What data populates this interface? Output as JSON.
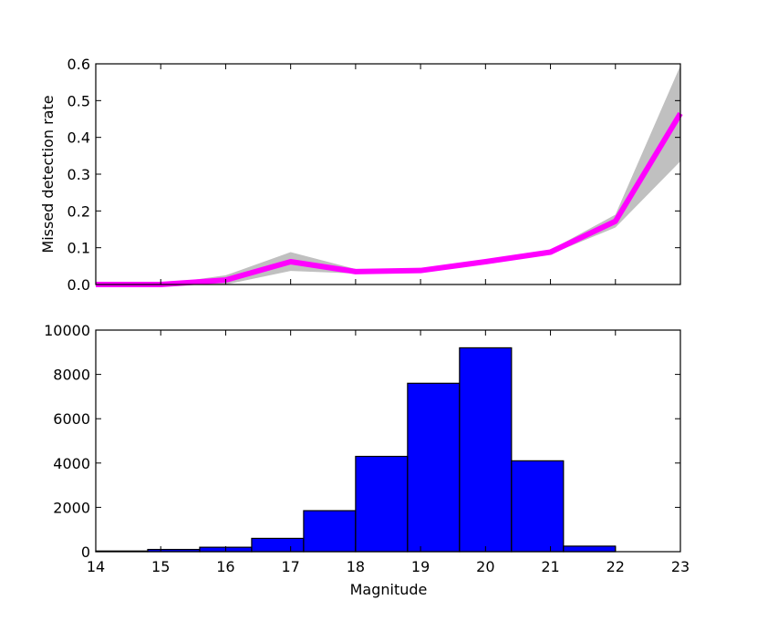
{
  "chart_data": [
    {
      "type": "line",
      "ylabel": "Missed detection rate",
      "xlim": [
        14,
        23
      ],
      "ylim": [
        0,
        0.6
      ],
      "yticks": [
        "0.0",
        "0.1",
        "0.2",
        "0.3",
        "0.4",
        "0.5",
        "0.6"
      ],
      "x": [
        14,
        15,
        16,
        17,
        18,
        19,
        20,
        21,
        22,
        23
      ],
      "series": [
        {
          "values": [
            0.0,
            0.0,
            0.012,
            0.062,
            0.035,
            0.038,
            0.062,
            0.088,
            0.172,
            0.465
          ],
          "color": "#ff00ff",
          "band_lower": [
            0.0,
            0.0,
            0.0,
            0.037,
            0.03,
            0.034,
            0.058,
            0.082,
            0.155,
            0.335
          ],
          "band_upper": [
            0.0,
            0.0,
            0.025,
            0.088,
            0.042,
            0.043,
            0.066,
            0.094,
            0.19,
            0.595
          ],
          "band_color": "#c0c0c0"
        }
      ]
    },
    {
      "type": "bar",
      "xlabel": "Magnitude",
      "xlim": [
        14,
        23
      ],
      "ylim": [
        0,
        10000
      ],
      "xticks": [
        "14",
        "15",
        "16",
        "17",
        "18",
        "19",
        "20",
        "21",
        "22",
        "23"
      ],
      "yticks": [
        "0",
        "2000",
        "4000",
        "6000",
        "8000",
        "10000"
      ],
      "bin_edges": [
        14.0,
        14.8,
        15.6,
        16.4,
        17.2,
        18.0,
        18.8,
        19.6,
        20.4,
        21.2,
        22.0,
        22.8
      ],
      "values": [
        30,
        100,
        200,
        600,
        1850,
        4300,
        7600,
        9200,
        4100,
        250,
        0
      ],
      "color": "#0000ff"
    }
  ]
}
